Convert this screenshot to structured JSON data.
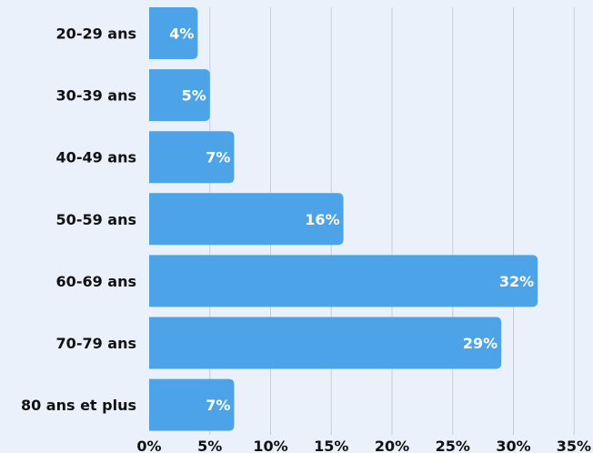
{
  "chart_data": {
    "type": "bar",
    "orientation": "horizontal",
    "categories": [
      "20-29 ans",
      "30-39 ans",
      "40-49 ans",
      "50-59 ans",
      "60-69 ans",
      "70-79 ans",
      "80 ans et plus"
    ],
    "values": [
      4,
      5,
      7,
      16,
      32,
      29,
      7
    ],
    "value_labels": [
      "4%",
      "5%",
      "7%",
      "16%",
      "32%",
      "29%",
      "7%"
    ],
    "x_ticks": [
      0,
      5,
      10,
      15,
      20,
      25,
      30,
      35
    ],
    "x_tick_labels": [
      "0%",
      "5%",
      "10%",
      "15%",
      "20%",
      "25%",
      "30%",
      "35%"
    ],
    "xlim": [
      0,
      35
    ],
    "grid": true,
    "legend": "none",
    "colors": {
      "background": "#EAF1FB",
      "bar": "#4DA3E8",
      "grid": "#C9CDD4",
      "label_text": "#111111",
      "value_text": "#FFFFFF"
    }
  }
}
